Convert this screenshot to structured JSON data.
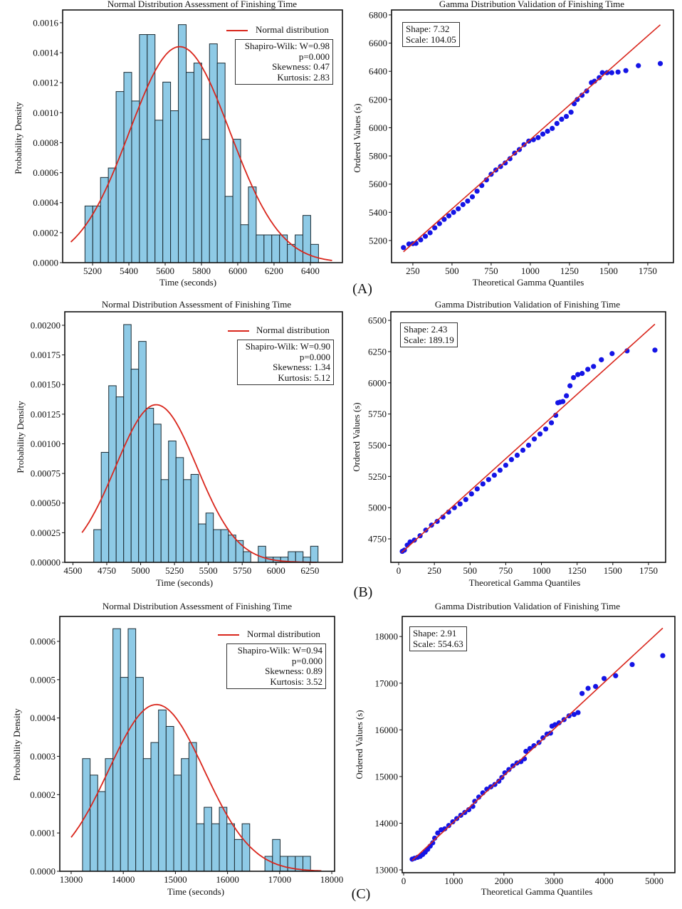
{
  "panel_labels": [
    "(A)",
    "(B)",
    "(C)"
  ],
  "chart_data": [
    {
      "id": "A_hist",
      "type": "bar",
      "title": "Normal Distribution Assessment of Finishing Time",
      "xlabel": "Time (seconds)",
      "ylabel": "Probability Density",
      "xlim": [
        5035,
        6577
      ],
      "ylim": [
        0,
        0.001685
      ],
      "xticks": [
        5200,
        5400,
        5600,
        5800,
        6000,
        6200,
        6400
      ],
      "xtick_labels": [
        "5200",
        "5400",
        "5600",
        "5800",
        "6000",
        "6200",
        "6400"
      ],
      "yticks": [
        0,
        0.0002,
        0.0004,
        0.0006,
        0.0008,
        0.001,
        0.0012,
        0.0014,
        0.0016
      ],
      "ytick_labels": [
        "0.0000",
        "0.0002",
        "0.0004",
        "0.0006",
        "0.0008",
        "0.0010",
        "0.0012",
        "0.0014",
        "0.0016"
      ],
      "bin_start": 5158,
      "bin_width": 42.9,
      "values": [
        0.000378,
        0.000378,
        0.000568,
        0.000631,
        0.001141,
        0.001269,
        0.001078,
        0.001521,
        0.001521,
        0.00095,
        0.001204,
        0.001013,
        0.001587,
        0.001269,
        0.001331,
        0.000823,
        0.001459,
        0.001331,
        0.000442,
        0.000823,
        0.000253,
        0.000505,
        0.000185,
        0.000185,
        0.000185,
        0.000185,
        0.000122,
        0.000185,
        0.000315,
        0.000122
      ],
      "normal_fit": {
        "mean": 5680,
        "std": 277,
        "x_range": [
          5080,
          6520
        ]
      },
      "legend": {
        "label": "Normal distribution",
        "placement": "top-right"
      },
      "stats": [
        "Shapiro-Wilk: W=0.98",
        "p=0.000",
        "Skewness: 0.47",
        "Kurtosis: 2.83"
      ],
      "colors": {
        "bar": "#8ecae6",
        "edge": "#1b2b33",
        "curve": "#d9261c"
      }
    },
    {
      "id": "A_qq",
      "type": "scatter",
      "title": "Gamma Distribution Validation of Finishing Time",
      "xlabel": "Theoretical Gamma Quantiles",
      "ylabel": "Ordered Values (s)",
      "xlim": [
        114,
        1914
      ],
      "ylim": [
        5043,
        6835
      ],
      "xticks": [
        250,
        500,
        750,
        1000,
        1250,
        1500,
        1750
      ],
      "xtick_labels": [
        "250",
        "500",
        "750",
        "1000",
        "1250",
        "1500",
        "1750"
      ],
      "yticks": [
        5200,
        5400,
        5600,
        5800,
        6000,
        6200,
        6400,
        6600,
        6800
      ],
      "ytick_labels": [
        "5200",
        "5400",
        "5600",
        "5800",
        "6000",
        "6200",
        "6400",
        "6600",
        "6800"
      ],
      "info": [
        "Shape: 7.32",
        "Scale: 104.05"
      ],
      "fit_line": [
        [
          190,
          5120
        ],
        [
          1830,
          6730
        ]
      ],
      "points": [
        [
          190,
          5150
        ],
        [
          225,
          5175
        ],
        [
          250,
          5178
        ],
        [
          270,
          5180
        ],
        [
          300,
          5205
        ],
        [
          330,
          5230
        ],
        [
          360,
          5255
        ],
        [
          390,
          5290
        ],
        [
          420,
          5320
        ],
        [
          450,
          5350
        ],
        [
          480,
          5375
        ],
        [
          510,
          5400
        ],
        [
          540,
          5425
        ],
        [
          570,
          5455
        ],
        [
          600,
          5480
        ],
        [
          630,
          5510
        ],
        [
          660,
          5550
        ],
        [
          690,
          5590
        ],
        [
          720,
          5630
        ],
        [
          750,
          5670
        ],
        [
          780,
          5700
        ],
        [
          810,
          5725
        ],
        [
          840,
          5750
        ],
        [
          870,
          5780
        ],
        [
          900,
          5820
        ],
        [
          930,
          5845
        ],
        [
          960,
          5880
        ],
        [
          990,
          5905
        ],
        [
          1020,
          5915
        ],
        [
          1050,
          5930
        ],
        [
          1080,
          5955
        ],
        [
          1110,
          5975
        ],
        [
          1140,
          5995
        ],
        [
          1170,
          6030
        ],
        [
          1200,
          6060
        ],
        [
          1230,
          6080
        ],
        [
          1260,
          6110
        ],
        [
          1280,
          6170
        ],
        [
          1300,
          6200
        ],
        [
          1330,
          6230
        ],
        [
          1360,
          6260
        ],
        [
          1390,
          6320
        ],
        [
          1410,
          6330
        ],
        [
          1440,
          6355
        ],
        [
          1460,
          6390
        ],
        [
          1490,
          6390
        ],
        [
          1520,
          6390
        ],
        [
          1560,
          6395
        ],
        [
          1610,
          6405
        ],
        [
          1690,
          6440
        ],
        [
          1830,
          6455
        ]
      ],
      "colors": {
        "point": "#1414e6",
        "line": "#d9261c"
      }
    },
    {
      "id": "B_hist",
      "type": "bar",
      "title": "Normal Distribution Assessment of Finishing Time",
      "xlabel": "Time (seconds)",
      "ylabel": "Probability Density",
      "xlim": [
        4440,
        6490
      ],
      "ylim": [
        0,
        0.002114
      ],
      "xticks": [
        4500,
        4750,
        5000,
        5250,
        5500,
        5750,
        6000,
        6250
      ],
      "xtick_labels": [
        "4500",
        "4750",
        "5000",
        "5250",
        "5500",
        "5750",
        "6000",
        "6250"
      ],
      "yticks": [
        0,
        0.00025,
        0.0005,
        0.00075,
        0.001,
        0.00125,
        0.0015,
        0.00175,
        0.002
      ],
      "ytick_labels": [
        "0.00000",
        "0.00025",
        "0.00050",
        "0.00075",
        "0.00100",
        "0.00125",
        "0.00150",
        "0.00175",
        "0.00200"
      ],
      "bin_start": 4654,
      "bin_width": 55.2,
      "values": [
        0.000276,
        0.000928,
        0.00149,
        0.001396,
        0.002006,
        0.00163,
        0.001864,
        0.0013,
        0.001166,
        0.000698,
        0.001024,
        0.000884,
        0.000698,
        0.000742,
        0.000324,
        0.000416,
        0.000276,
        0.000276,
        0.00023,
        0.000184,
        9e-05,
        0,
        0.000136,
        4.4e-05,
        4.4e-05,
        4.4e-05,
        9e-05,
        9e-05,
        4.4e-05,
        0.000136
      ],
      "normal_fit": {
        "mean": 5115,
        "std": 300,
        "x_range": [
          4567,
          6300
        ]
      },
      "legend": {
        "label": "Normal distribution",
        "placement": "top-right"
      },
      "stats": [
        "Shapiro-Wilk: W=0.90",
        "p=0.000",
        "Skewness: 1.34",
        "Kurtosis: 5.12"
      ],
      "colors": {
        "bar": "#8ecae6",
        "edge": "#1b2b33",
        "curve": "#d9261c"
      }
    },
    {
      "id": "B_qq",
      "type": "scatter",
      "title": "Gamma Distribution Validation of Finishing Time",
      "xlabel": "Theoretical Gamma Quantiles",
      "ylabel": "Ordered Values (s)",
      "xlim": [
        -55,
        1870
      ],
      "ylim": [
        4562,
        6569
      ],
      "xticks": [
        0,
        250,
        500,
        750,
        1000,
        1250,
        1500,
        1750
      ],
      "xtick_labels": [
        "0",
        "250",
        "500",
        "750",
        "1000",
        "1250",
        "1500",
        "1750"
      ],
      "yticks": [
        4750,
        5000,
        5250,
        5500,
        5750,
        6000,
        6250,
        6500
      ],
      "ytick_labels": [
        "4750",
        "5000",
        "5250",
        "5500",
        "5750",
        "6000",
        "6250",
        "6500"
      ],
      "info": [
        "Shape: 2.43",
        "Scale: 189.19"
      ],
      "fit_line": [
        [
          20,
          4640
        ],
        [
          1795,
          6470
        ]
      ],
      "points": [
        [
          25,
          4650
        ],
        [
          40,
          4660
        ],
        [
          60,
          4700
        ],
        [
          80,
          4725
        ],
        [
          110,
          4740
        ],
        [
          150,
          4775
        ],
        [
          190,
          4820
        ],
        [
          230,
          4860
        ],
        [
          270,
          4890
        ],
        [
          310,
          4925
        ],
        [
          350,
          4965
        ],
        [
          390,
          5000
        ],
        [
          430,
          5030
        ],
        [
          470,
          5065
        ],
        [
          510,
          5110
        ],
        [
          550,
          5150
        ],
        [
          590,
          5190
        ],
        [
          630,
          5225
        ],
        [
          670,
          5260
        ],
        [
          710,
          5300
        ],
        [
          750,
          5340
        ],
        [
          790,
          5385
        ],
        [
          830,
          5420
        ],
        [
          870,
          5460
        ],
        [
          910,
          5500
        ],
        [
          950,
          5550
        ],
        [
          990,
          5590
        ],
        [
          1030,
          5630
        ],
        [
          1070,
          5680
        ],
        [
          1100,
          5740
        ],
        [
          1115,
          5840
        ],
        [
          1130,
          5845
        ],
        [
          1150,
          5850
        ],
        [
          1175,
          5896
        ],
        [
          1200,
          5976
        ],
        [
          1225,
          6042
        ],
        [
          1255,
          6066
        ],
        [
          1285,
          6075
        ],
        [
          1325,
          6108
        ],
        [
          1365,
          6131
        ],
        [
          1420,
          6185
        ],
        [
          1495,
          6234
        ],
        [
          1600,
          6256
        ],
        [
          1795,
          6262
        ]
      ],
      "colors": {
        "point": "#1414e6",
        "line": "#d9261c"
      }
    },
    {
      "id": "C_hist",
      "type": "bar",
      "title": "Normal Distribution Assessment of Finishing Time",
      "xlabel": "Time (seconds)",
      "ylabel": "Probability Density",
      "xlim": [
        12782,
        18054
      ],
      "ylim": [
        0,
        0.000665
      ],
      "xticks": [
        13000,
        14000,
        15000,
        16000,
        17000,
        18000
      ],
      "xtick_labels": [
        "13000",
        "14000",
        "15000",
        "16000",
        "17000",
        "18000"
      ],
      "yticks": [
        0,
        0.0001,
        0.0002,
        0.0003,
        0.0004,
        0.0005,
        0.0006
      ],
      "ytick_labels": [
        "0.0000",
        "0.0001",
        "0.0002",
        "0.0003",
        "0.0004",
        "0.0005",
        "0.0006"
      ],
      "bin_start": 13218,
      "bin_width": 145.8,
      "values": [
        0.000294,
        0.000251,
        0.000208,
        0.000294,
        0.000633,
        0.000506,
        0.000633,
        0.000506,
        0.000294,
        0.000336,
        0.000421,
        0.000378,
        0.000251,
        0.000294,
        0.000336,
        0.000124,
        0.000167,
        0.000124,
        0.000167,
        0.000124,
        8.3e-05,
        0.000124,
        0,
        0,
        3.9e-05,
        8.3e-05,
        3.9e-05,
        3.9e-05,
        3.9e-05,
        3.9e-05
      ],
      "normal_fit": {
        "mean": 14636,
        "std": 917,
        "x_range": [
          13000,
          17800
        ]
      },
      "legend": {
        "label": "Normal distribution",
        "placement": "top-right"
      },
      "stats": [
        "Shapiro-Wilk: W=0.94",
        "p=0.000",
        "Skewness: 0.89",
        "Kurtosis: 3.52"
      ],
      "colors": {
        "bar": "#8ecae6",
        "edge": "#1b2b33",
        "curve": "#d9261c"
      }
    },
    {
      "id": "C_qq",
      "type": "scatter",
      "title": "Gamma Distribution Validation of Finishing Time",
      "xlabel": "Theoretical Gamma Quantiles",
      "ylabel": "Ordered Values (s)",
      "xlim": [
        -28,
        5412
      ],
      "ylim": [
        12940,
        18430
      ],
      "xticks": [
        0,
        1000,
        2000,
        3000,
        4000,
        5000
      ],
      "xtick_labels": [
        "0",
        "1000",
        "2000",
        "3000",
        "4000",
        "5000"
      ],
      "yticks": [
        13000,
        14000,
        15000,
        16000,
        17000,
        18000
      ],
      "ytick_labels": [
        "13000",
        "14000",
        "15000",
        "16000",
        "17000",
        "18000"
      ],
      "info": [
        "Shape: 2.91",
        "Scale: 554.63"
      ],
      "fit_line": [
        [
          170,
          13200
        ],
        [
          5170,
          18180
        ]
      ],
      "points": [
        [
          170,
          13230
        ],
        [
          220,
          13250
        ],
        [
          280,
          13270
        ],
        [
          330,
          13290
        ],
        [
          380,
          13330
        ],
        [
          430,
          13380
        ],
        [
          480,
          13440
        ],
        [
          530,
          13510
        ],
        [
          580,
          13580
        ],
        [
          620,
          13680
        ],
        [
          680,
          13790
        ],
        [
          750,
          13860
        ],
        [
          820,
          13880
        ],
        [
          900,
          13950
        ],
        [
          980,
          14030
        ],
        [
          1060,
          14100
        ],
        [
          1140,
          14170
        ],
        [
          1220,
          14230
        ],
        [
          1300,
          14290
        ],
        [
          1380,
          14360
        ],
        [
          1420,
          14470
        ],
        [
          1500,
          14560
        ],
        [
          1580,
          14650
        ],
        [
          1660,
          14730
        ],
        [
          1740,
          14780
        ],
        [
          1820,
          14830
        ],
        [
          1900,
          14900
        ],
        [
          1960,
          14980
        ],
        [
          2020,
          15080
        ],
        [
          2100,
          15150
        ],
        [
          2180,
          15230
        ],
        [
          2260,
          15290
        ],
        [
          2340,
          15320
        ],
        [
          2410,
          15380
        ],
        [
          2440,
          15540
        ],
        [
          2520,
          15600
        ],
        [
          2600,
          15660
        ],
        [
          2700,
          15730
        ],
        [
          2780,
          15830
        ],
        [
          2860,
          15910
        ],
        [
          2930,
          15930
        ],
        [
          2960,
          16080
        ],
        [
          3020,
          16110
        ],
        [
          3100,
          16150
        ],
        [
          3200,
          16220
        ],
        [
          3300,
          16300
        ],
        [
          3400,
          16330
        ],
        [
          3480,
          16370
        ],
        [
          3560,
          16780
        ],
        [
          3680,
          16890
        ],
        [
          3830,
          16930
        ],
        [
          4000,
          17100
        ],
        [
          4230,
          17160
        ],
        [
          4560,
          17400
        ],
        [
          5170,
          17590
        ]
      ],
      "colors": {
        "point": "#1414e6",
        "line": "#d9261c"
      }
    }
  ]
}
